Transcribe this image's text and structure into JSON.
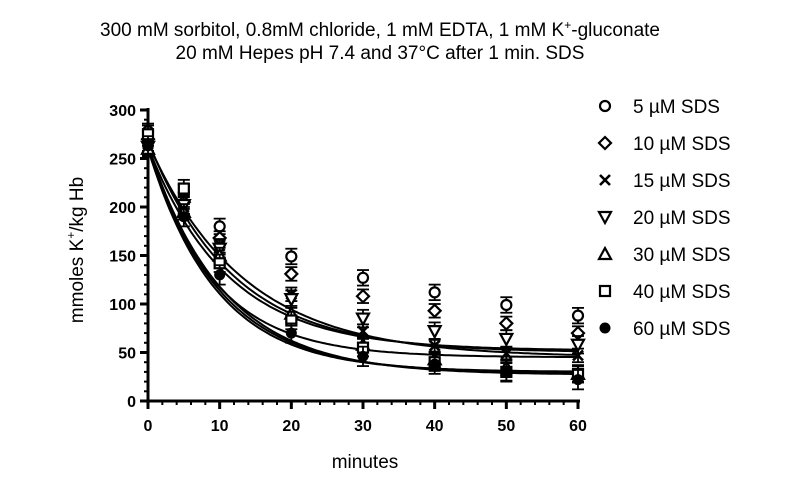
{
  "chart_data": {
    "type": "scatter",
    "title_line1": "300 mM sorbitol, 0.8mM chloride, 1 mM EDTA, 1 mM K",
    "title_sup": "+",
    "title_line1_end": "-gluconate",
    "title_line2": "20 mM Hepes pH 7.4 and 37°C after 1 min. SDS",
    "xlabel": "minutes",
    "ylabel_pre": "mmoles K",
    "ylabel_sup": "+",
    "ylabel_post": "/kg Hb",
    "xlim": [
      0,
      60
    ],
    "ylim": [
      0,
      300
    ],
    "xticks": [
      0,
      10,
      20,
      30,
      40,
      50,
      60
    ],
    "yticks": [
      0,
      50,
      100,
      150,
      200,
      250,
      300
    ],
    "x": [
      0,
      5,
      10,
      20,
      30,
      40,
      50,
      60
    ],
    "grid": false,
    "legend_position": "right",
    "series": [
      {
        "name": "5 µM SDS",
        "marker": "circle-open",
        "values": [
          278,
          215,
          180,
          149,
          127,
          112,
          99,
          88
        ],
        "err": 8
      },
      {
        "name": "10 µM SDS",
        "marker": "diamond-open",
        "values": [
          270,
          205,
          168,
          131,
          108,
          93,
          80,
          70
        ],
        "err": 7
      },
      {
        "name": "15 µM SDS",
        "marker": "x",
        "values": [
          265,
          200,
          160,
          110,
          72,
          57,
          49,
          47
        ],
        "err": 7
      },
      {
        "name": "20 µM SDS",
        "marker": "triangle-down-open",
        "values": [
          262,
          202,
          157,
          105,
          85,
          72,
          64,
          58
        ],
        "err": 9
      },
      {
        "name": "30 µM SDS",
        "marker": "triangle-up-open",
        "values": [
          260,
          195,
          150,
          90,
          58,
          43,
          35,
          28
        ],
        "err": 8
      },
      {
        "name": "40 µM SDS",
        "marker": "square-open",
        "values": [
          275,
          219,
          142,
          83,
          55,
          40,
          30,
          28
        ],
        "err": 9
      },
      {
        "name": "60 µM SDS",
        "marker": "circle-filled",
        "values": [
          263,
          190,
          130,
          70,
          46,
          38,
          30,
          22
        ],
        "err": 10
      }
    ],
    "fit_curves": [
      {
        "name": "5 µM SDS",
        "plateau": 50,
        "y0": 268,
        "k": 0.085
      },
      {
        "name": "10 µM SDS",
        "plateau": 45,
        "y0": 266,
        "k": 0.075
      },
      {
        "name": "15 µM SDS",
        "plateau": 45,
        "y0": 262,
        "k": 0.11
      },
      {
        "name": "20 µM SDS",
        "plateau": 52,
        "y0": 262,
        "k": 0.09
      },
      {
        "name": "30 µM SDS",
        "plateau": 29,
        "y0": 260,
        "k": 0.1
      },
      {
        "name": "40 µM SDS",
        "plateau": 27,
        "y0": 262,
        "k": 0.095
      },
      {
        "name": "60 µM SDS",
        "plateau": 30,
        "y0": 260,
        "k": 0.105
      }
    ]
  }
}
